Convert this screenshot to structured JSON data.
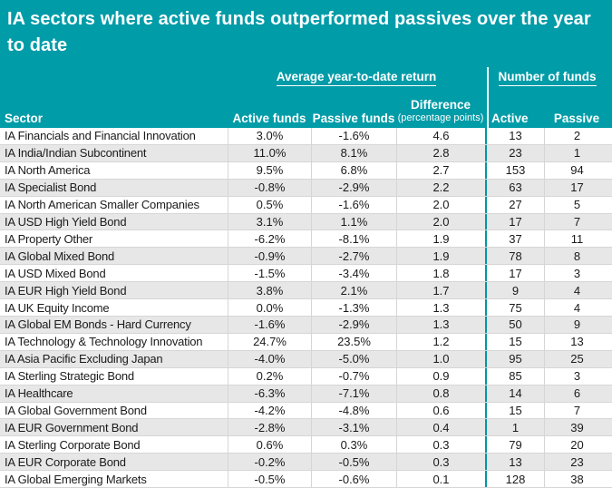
{
  "title": "IA sectors where active funds outperformed passives over the year to date",
  "colors": {
    "teal_header": "#009CA8",
    "teal_divider": "#0097A5",
    "row_stripe": "#E7E7E7",
    "cell_border": "#D6D6D6",
    "text": "#1B1B1B",
    "header_text": "#FFFFFF"
  },
  "chart_data": {
    "type": "table",
    "title": "IA sectors where active funds outperformed passives over the year to date",
    "group_headers": {
      "returns": "Average year-to-date return",
      "funds": "Number of funds"
    },
    "columns": {
      "sector": "Sector",
      "active_return": "Active funds",
      "passive_return": "Passive funds",
      "difference_line1": "Difference",
      "difference_line2": "(percentage points)",
      "active_count": "Active",
      "passive_count": "Passive"
    },
    "rows": [
      {
        "sector": "IA Financials and Financial Innovation",
        "active_return": "3.0%",
        "passive_return": "-1.6%",
        "difference": "4.6",
        "active_count": "13",
        "passive_count": "2"
      },
      {
        "sector": "IA India/Indian Subcontinent",
        "active_return": "11.0%",
        "passive_return": "8.1%",
        "difference": "2.8",
        "active_count": "23",
        "passive_count": "1"
      },
      {
        "sector": "IA North America",
        "active_return": "9.5%",
        "passive_return": "6.8%",
        "difference": "2.7",
        "active_count": "153",
        "passive_count": "94"
      },
      {
        "sector": "IA Specialist Bond",
        "active_return": "-0.8%",
        "passive_return": "-2.9%",
        "difference": "2.2",
        "active_count": "63",
        "passive_count": "17"
      },
      {
        "sector": "IA North American Smaller Companies",
        "active_return": "0.5%",
        "passive_return": "-1.6%",
        "difference": "2.0",
        "active_count": "27",
        "passive_count": "5"
      },
      {
        "sector": "IA USD High Yield Bond",
        "active_return": "3.1%",
        "passive_return": "1.1%",
        "difference": "2.0",
        "active_count": "17",
        "passive_count": "7"
      },
      {
        "sector": "IA Property Other",
        "active_return": "-6.2%",
        "passive_return": "-8.1%",
        "difference": "1.9",
        "active_count": "37",
        "passive_count": "11"
      },
      {
        "sector": "IA Global Mixed Bond",
        "active_return": "-0.9%",
        "passive_return": "-2.7%",
        "difference": "1.9",
        "active_count": "78",
        "passive_count": "8"
      },
      {
        "sector": "IA USD Mixed Bond",
        "active_return": "-1.5%",
        "passive_return": "-3.4%",
        "difference": "1.8",
        "active_count": "17",
        "passive_count": "3"
      },
      {
        "sector": "IA EUR High Yield Bond",
        "active_return": "3.8%",
        "passive_return": "2.1%",
        "difference": "1.7",
        "active_count": "9",
        "passive_count": "4"
      },
      {
        "sector": "IA UK Equity Income",
        "active_return": "0.0%",
        "passive_return": "-1.3%",
        "difference": "1.3",
        "active_count": "75",
        "passive_count": "4"
      },
      {
        "sector": "IA Global EM Bonds - Hard Currency",
        "active_return": "-1.6%",
        "passive_return": "-2.9%",
        "difference": "1.3",
        "active_count": "50",
        "passive_count": "9"
      },
      {
        "sector": "IA Technology & Technology Innovation",
        "active_return": "24.7%",
        "passive_return": "23.5%",
        "difference": "1.2",
        "active_count": "15",
        "passive_count": "13"
      },
      {
        "sector": "IA Asia Pacific Excluding Japan",
        "active_return": "-4.0%",
        "passive_return": "-5.0%",
        "difference": "1.0",
        "active_count": "95",
        "passive_count": "25"
      },
      {
        "sector": "IA Sterling Strategic Bond",
        "active_return": "0.2%",
        "passive_return": "-0.7%",
        "difference": "0.9",
        "active_count": "85",
        "passive_count": "3"
      },
      {
        "sector": "IA Healthcare",
        "active_return": "-6.3%",
        "passive_return": "-7.1%",
        "difference": "0.8",
        "active_count": "14",
        "passive_count": "6"
      },
      {
        "sector": "IA Global Government Bond",
        "active_return": "-4.2%",
        "passive_return": "-4.8%",
        "difference": "0.6",
        "active_count": "15",
        "passive_count": "7"
      },
      {
        "sector": "IA EUR Government Bond",
        "active_return": "-2.8%",
        "passive_return": "-3.1%",
        "difference": "0.4",
        "active_count": "1",
        "passive_count": "39"
      },
      {
        "sector": "IA Sterling Corporate Bond",
        "active_return": "0.6%",
        "passive_return": "0.3%",
        "difference": "0.3",
        "active_count": "79",
        "passive_count": "20"
      },
      {
        "sector": "IA EUR Corporate Bond",
        "active_return": "-0.2%",
        "passive_return": "-0.5%",
        "difference": "0.3",
        "active_count": "13",
        "passive_count": "23"
      },
      {
        "sector": "IA Global Emerging Markets",
        "active_return": "-0.5%",
        "passive_return": "-0.6%",
        "difference": "0.1",
        "active_count": "128",
        "passive_count": "38"
      }
    ]
  }
}
